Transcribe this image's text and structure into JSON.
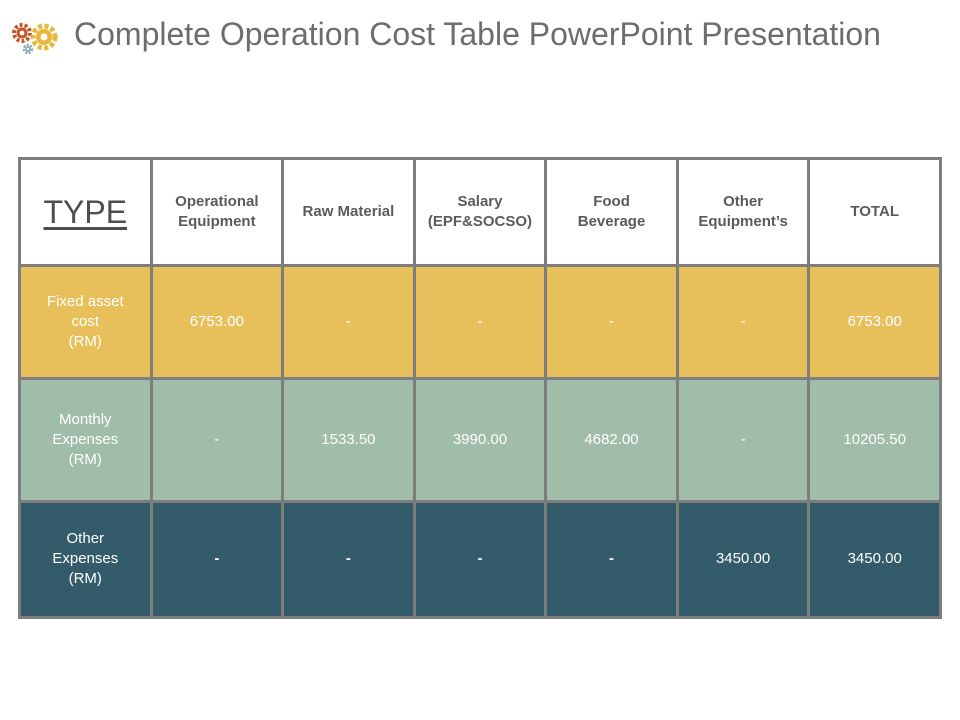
{
  "title": "Complete Operation Cost Table PowerPoint Presentation",
  "colors": {
    "gear_large": "#e8b83b",
    "gear_small": "#c8542b",
    "gear_mini": "#7fa8b0",
    "row_fixed": "#e7c05c",
    "row_monthly": "#a0bdaa",
    "row_other": "#335b6a"
  },
  "icons": {
    "logo": "gears-icon"
  },
  "table": {
    "type_label": "TYPE",
    "columns": [
      "Operational\nEquipment",
      "Raw Material",
      "Salary\n(EPF&SOCSO)",
      "Food\nBeverage",
      "Other\nEquipment’s",
      "TOTAL"
    ],
    "rows": [
      {
        "label": "Fixed  asset\ncost\n(RM)",
        "cells": [
          "6753.00",
          "-",
          "-",
          "-",
          "-",
          "6753.00"
        ]
      },
      {
        "label": "Monthly\nExpenses\n(RM)",
        "cells": [
          "-",
          "1533.50",
          "3990.00",
          "4682.00",
          "-",
          "10205.50"
        ]
      },
      {
        "label": "Other\nExpenses\n(RM)",
        "cells": [
          "-",
          "-",
          "-",
          "-",
          "3450.00",
          "3450.00"
        ]
      }
    ]
  }
}
